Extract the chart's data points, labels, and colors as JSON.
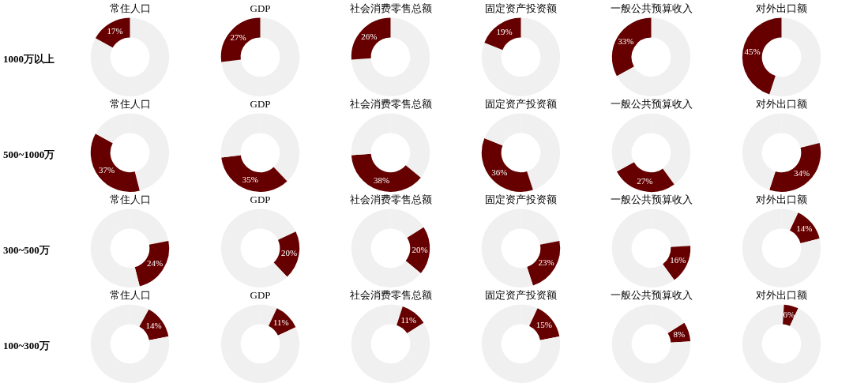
{
  "chart_data": [
    {
      "type": "donut",
      "title": "常住人口",
      "ylabel": "1000万以上",
      "categories": [
        null,
        null
      ],
      "values": [
        83,
        17
      ],
      "colors": [
        "#f0f0f0",
        "#660000"
      ],
      "value_labels": [
        null,
        "17%"
      ]
    },
    {
      "type": "donut",
      "title": "GDP",
      "categories": [
        null,
        null
      ],
      "values": [
        73,
        27
      ],
      "colors": [
        "#f0f0f0",
        "#660000"
      ],
      "value_labels": [
        null,
        "27%"
      ]
    },
    {
      "type": "donut",
      "title": "社会消费零售总额",
      "categories": [
        null,
        null
      ],
      "values": [
        74,
        26
      ],
      "colors": [
        "#f0f0f0",
        "#660000"
      ],
      "value_labels": [
        null,
        "26%"
      ]
    },
    {
      "type": "donut",
      "title": "固定资产投资额",
      "categories": [
        null,
        null
      ],
      "values": [
        81,
        19
      ],
      "colors": [
        "#f0f0f0",
        "#660000"
      ],
      "value_labels": [
        null,
        "19%"
      ]
    },
    {
      "type": "donut",
      "title": "一般公共预算收入",
      "categories": [
        null,
        null
      ],
      "values": [
        67,
        33
      ],
      "colors": [
        "#f0f0f0",
        "#660000"
      ],
      "value_labels": [
        null,
        "33%"
      ]
    },
    {
      "type": "donut",
      "title": "对外出口额",
      "categories": [
        null,
        null
      ],
      "values": [
        55,
        45
      ],
      "colors": [
        "#f0f0f0",
        "#660000"
      ],
      "value_labels": [
        null,
        "45%"
      ]
    },
    {
      "type": "donut",
      "title": "常住人口",
      "ylabel": "500~1000万",
      "categories": [
        null,
        null,
        null
      ],
      "values": [
        46,
        37,
        17
      ],
      "colors": [
        "#f0f0f0",
        "#660000",
        "#f0f0f0"
      ],
      "value_labels": [
        null,
        "37%",
        null
      ]
    },
    {
      "type": "donut",
      "title": "GDP",
      "categories": [
        null,
        null,
        null
      ],
      "values": [
        38,
        35,
        27
      ],
      "colors": [
        "#f0f0f0",
        "#660000",
        "#f0f0f0"
      ],
      "value_labels": [
        null,
        "35%",
        null
      ]
    },
    {
      "type": "donut",
      "title": "社会消费零售总额",
      "categories": [
        null,
        null,
        null
      ],
      "values": [
        36,
        38,
        26
      ],
      "colors": [
        "#f0f0f0",
        "#660000",
        "#f0f0f0"
      ],
      "value_labels": [
        null,
        "38%",
        null
      ]
    },
    {
      "type": "donut",
      "title": "固定资产投资额",
      "categories": [
        null,
        null,
        null
      ],
      "values": [
        45,
        36,
        19
      ],
      "colors": [
        "#f0f0f0",
        "#660000",
        "#f0f0f0"
      ],
      "value_labels": [
        null,
        "36%",
        null
      ]
    },
    {
      "type": "donut",
      "title": "一般公共预算收入",
      "categories": [
        null,
        null,
        null
      ],
      "values": [
        40,
        27,
        33
      ],
      "colors": [
        "#f0f0f0",
        "#660000",
        "#f0f0f0"
      ],
      "value_labels": [
        null,
        "27%",
        null
      ]
    },
    {
      "type": "donut",
      "title": "对外出口额",
      "categories": [
        null,
        null,
        null
      ],
      "values": [
        21,
        34,
        45
      ],
      "colors": [
        "#f0f0f0",
        "#660000",
        "#f0f0f0"
      ],
      "value_labels": [
        null,
        "34%",
        null
      ]
    },
    {
      "type": "donut",
      "title": "常住人口",
      "ylabel": "300~500万",
      "categories": [
        null,
        null,
        null
      ],
      "values": [
        22,
        24,
        54
      ],
      "colors": [
        "#f0f0f0",
        "#660000",
        "#f0f0f0"
      ],
      "value_labels": [
        null,
        "24%",
        null
      ]
    },
    {
      "type": "donut",
      "title": "GDP",
      "categories": [
        null,
        null,
        null
      ],
      "values": [
        18,
        20,
        62
      ],
      "colors": [
        "#f0f0f0",
        "#660000",
        "#f0f0f0"
      ],
      "value_labels": [
        null,
        "20%",
        null
      ]
    },
    {
      "type": "donut",
      "title": "社会消费零售总额",
      "categories": [
        null,
        null,
        null
      ],
      "values": [
        16,
        20,
        64
      ],
      "colors": [
        "#f0f0f0",
        "#660000",
        "#f0f0f0"
      ],
      "value_labels": [
        null,
        "20%",
        null
      ]
    },
    {
      "type": "donut",
      "title": "固定资产投资额",
      "categories": [
        null,
        null,
        null
      ],
      "values": [
        22,
        23,
        55
      ],
      "colors": [
        "#f0f0f0",
        "#660000",
        "#f0f0f0"
      ],
      "value_labels": [
        null,
        "23%",
        null
      ]
    },
    {
      "type": "donut",
      "title": "一般公共预算收入",
      "categories": [
        null,
        null,
        null
      ],
      "values": [
        24,
        16,
        60
      ],
      "colors": [
        "#f0f0f0",
        "#660000",
        "#f0f0f0"
      ],
      "value_labels": [
        null,
        "16%",
        null
      ]
    },
    {
      "type": "donut",
      "title": "对外出口额",
      "categories": [
        null,
        null,
        null
      ],
      "values": [
        7,
        14,
        79
      ],
      "colors": [
        "#f0f0f0",
        "#660000",
        "#f0f0f0"
      ],
      "value_labels": [
        null,
        "14%",
        null
      ]
    },
    {
      "type": "donut",
      "title": "常住人口",
      "ylabel": "100~300万",
      "categories": [
        null,
        null,
        null
      ],
      "values": [
        8,
        14,
        78
      ],
      "colors": [
        "#f0f0f0",
        "#660000",
        "#f0f0f0"
      ],
      "value_labels": [
        null,
        "14%",
        null
      ]
    },
    {
      "type": "donut",
      "title": "GDP",
      "categories": [
        null,
        null,
        null
      ],
      "values": [
        7,
        11,
        82
      ],
      "colors": [
        "#f0f0f0",
        "#660000",
        "#f0f0f0"
      ],
      "value_labels": [
        null,
        "11%",
        null
      ]
    },
    {
      "type": "donut",
      "title": "社会消费零售总额",
      "categories": [
        null,
        null,
        null
      ],
      "values": [
        5,
        11,
        84
      ],
      "colors": [
        "#f0f0f0",
        "#660000",
        "#f0f0f0"
      ],
      "value_labels": [
        null,
        "11%",
        null
      ]
    },
    {
      "type": "donut",
      "title": "固定资产投资额",
      "categories": [
        null,
        null,
        null
      ],
      "values": [
        7,
        15,
        78
      ],
      "colors": [
        "#f0f0f0",
        "#660000",
        "#f0f0f0"
      ],
      "value_labels": [
        null,
        "15%",
        null
      ]
    },
    {
      "type": "donut",
      "title": "一般公共预算收入",
      "categories": [
        null,
        null,
        null
      ],
      "values": [
        16,
        8,
        76
      ],
      "colors": [
        "#f0f0f0",
        "#660000",
        "#f0f0f0"
      ],
      "value_labels": [
        null,
        "8%",
        null
      ]
    },
    {
      "type": "donut",
      "title": "对外出口额",
      "categories": [
        null,
        null,
        null
      ],
      "values": [
        1,
        6,
        93
      ],
      "colors": [
        "#f0f0f0",
        "#660000",
        "#f0f0f0"
      ],
      "value_labels": [
        null,
        "6%",
        null
      ]
    }
  ]
}
